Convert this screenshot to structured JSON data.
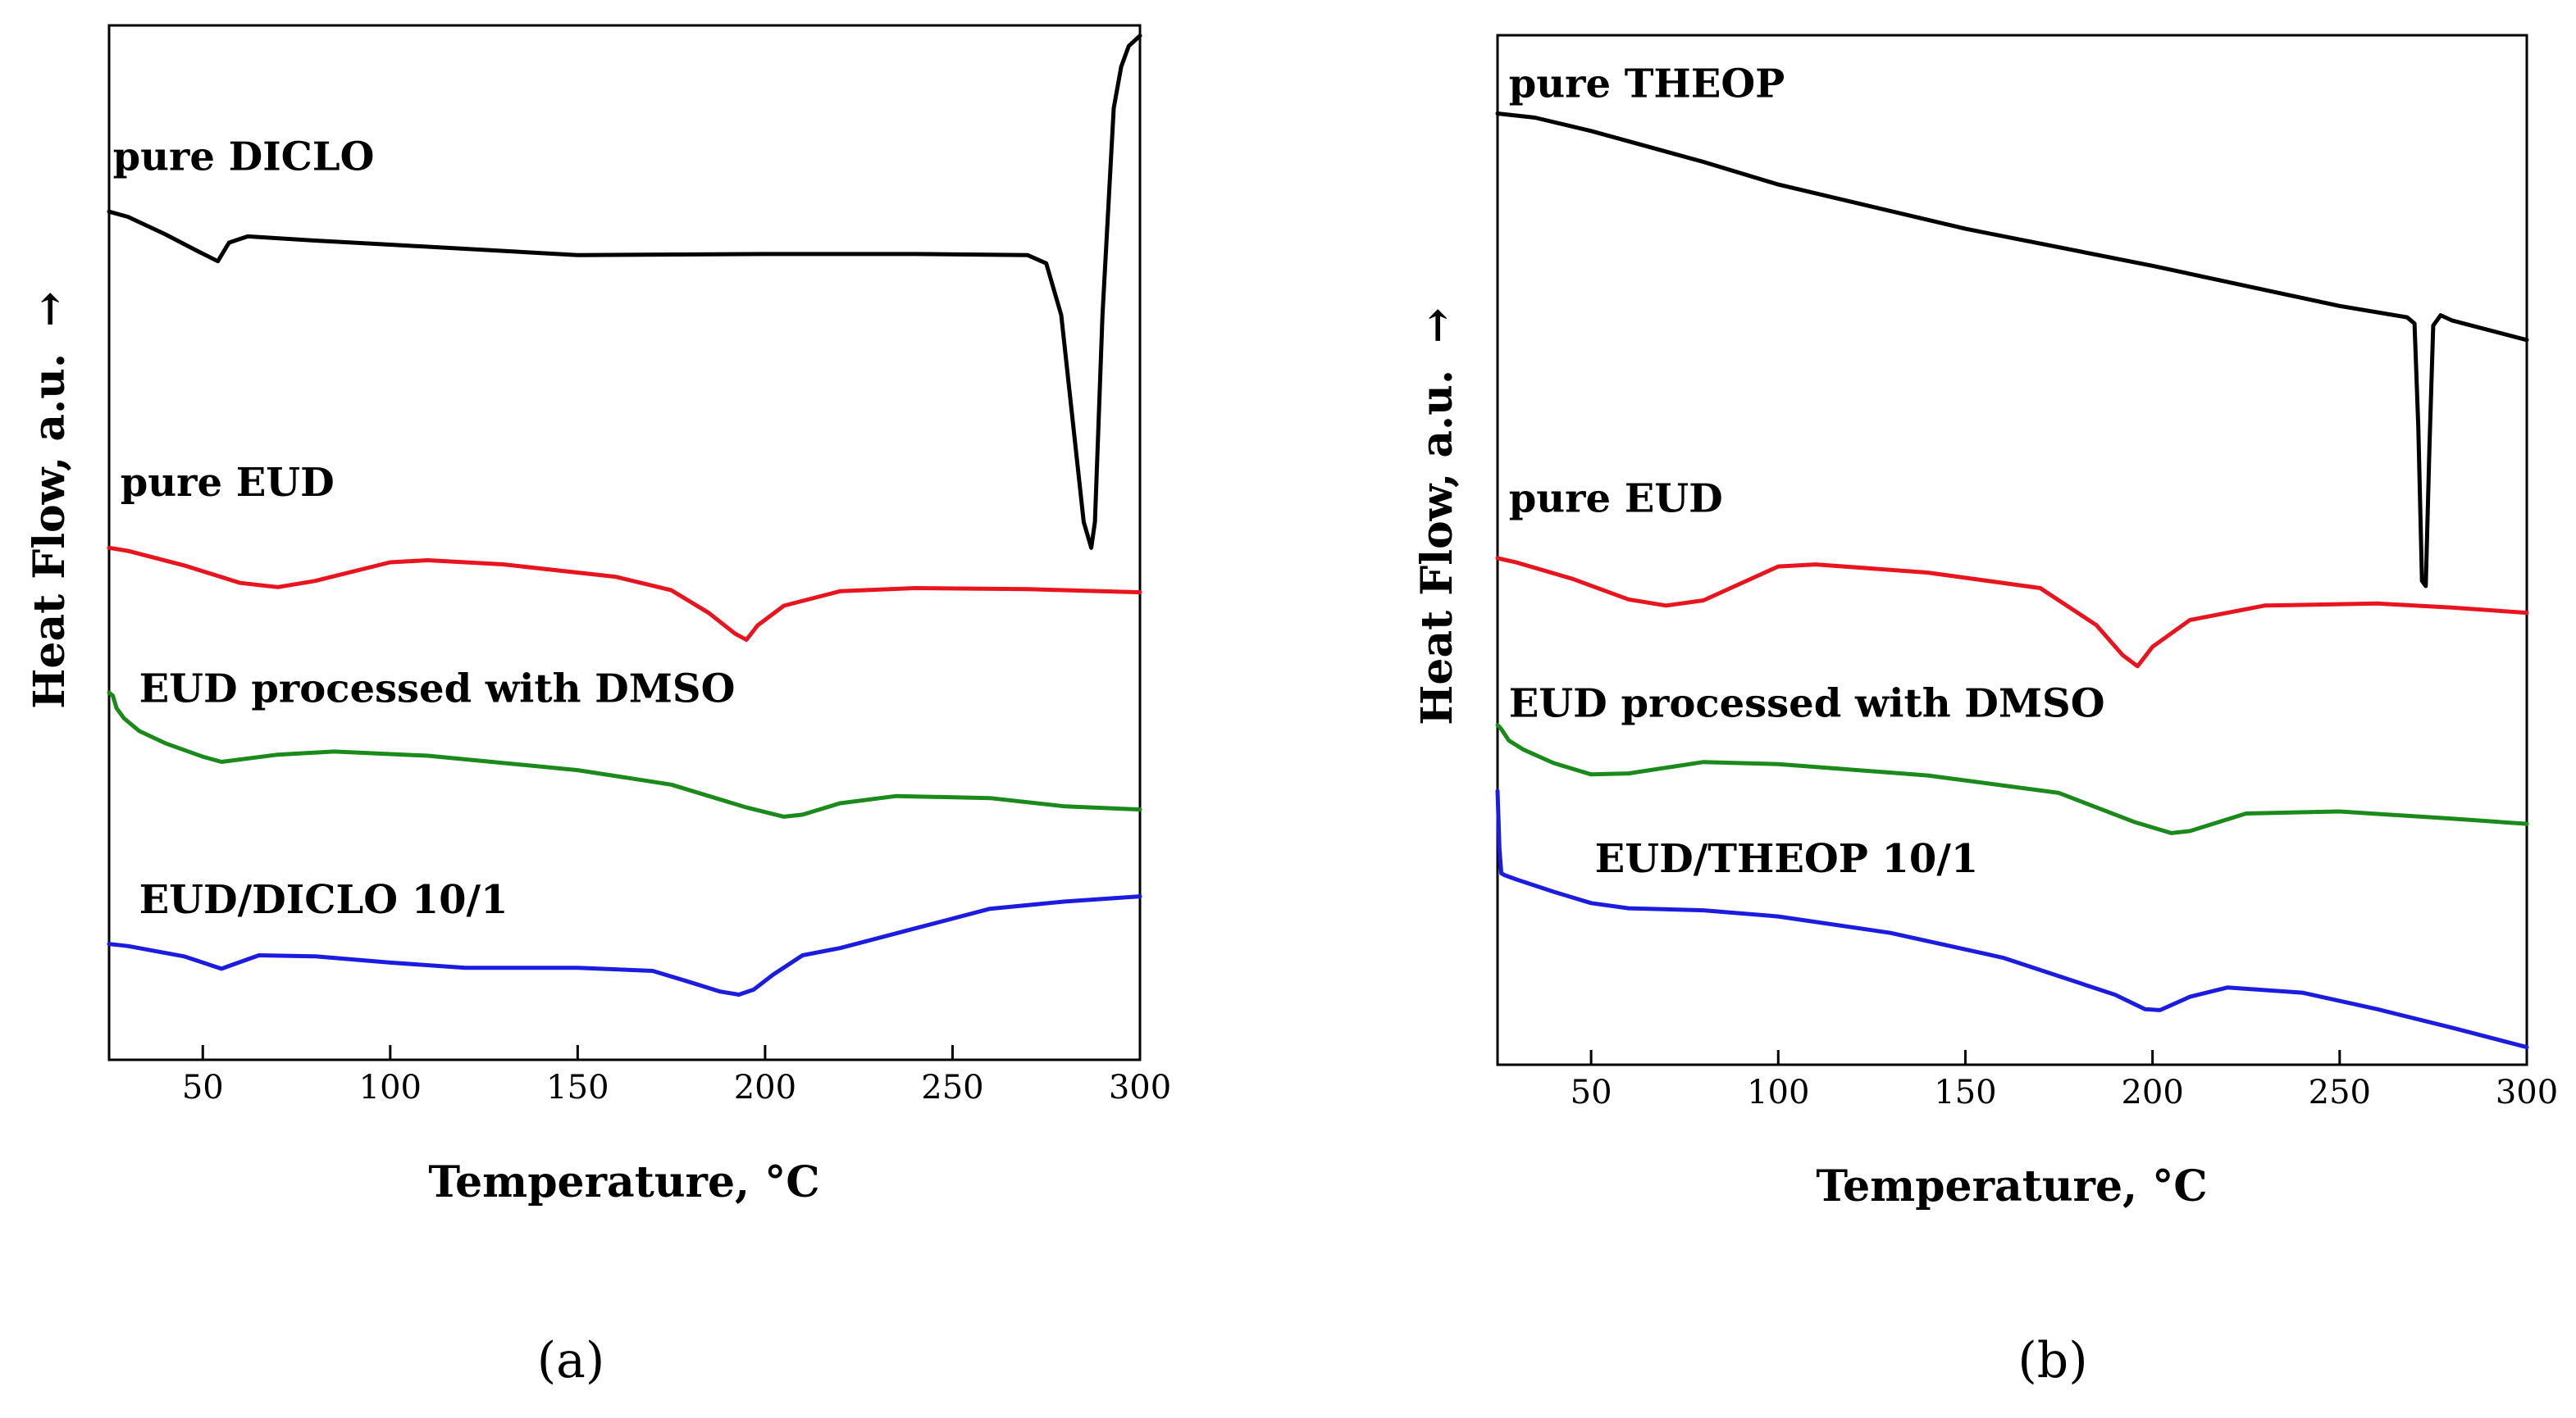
{
  "chart_data": [
    {
      "type": "line",
      "panel": "a",
      "panel_label": "(a)",
      "panel_letter": "a",
      "xlabel": "Temperature, °C",
      "ylabel": "Heat Flow, a.u.",
      "ylabel_arrow": "→",
      "xlim": [
        25,
        300
      ],
      "ylim": [
        0,
        100
      ],
      "xticks": [
        50,
        100,
        150,
        200,
        250,
        300
      ],
      "yticks_shown": false,
      "series": [
        {
          "name": "pure DICLO",
          "color": "#000000",
          "label_anchor": [
            26,
            86
          ],
          "x": [
            25,
            30,
            40,
            48,
            54,
            57,
            62,
            80,
            100,
            150,
            200,
            240,
            270,
            275,
            279,
            282,
            285,
            287,
            288,
            290,
            293,
            295,
            297,
            300
          ],
          "y": [
            82,
            81.5,
            79.8,
            78.3,
            77.2,
            79,
            79.6,
            79.2,
            78.8,
            77.8,
            77.9,
            77.9,
            77.8,
            77,
            72,
            62,
            52,
            49.5,
            52,
            72,
            92,
            96,
            98,
            99
          ]
        },
        {
          "name": "pure EUD",
          "color": "#e8141e",
          "label_anchor": [
            28,
            54.5
          ],
          "x": [
            25,
            30,
            45,
            60,
            70,
            80,
            100,
            110,
            130,
            160,
            175,
            185,
            192,
            195,
            198,
            205,
            220,
            240,
            270,
            300
          ],
          "y": [
            49.5,
            49.2,
            47.8,
            46.1,
            45.7,
            46.3,
            48.1,
            48.3,
            47.9,
            46.7,
            45.4,
            43.2,
            41.2,
            40.6,
            42,
            43.9,
            45.3,
            45.6,
            45.5,
            45.2
          ]
        },
        {
          "name": "EUD processed with DMSO",
          "color": "#1a8a1a",
          "label_anchor": [
            33,
            34.6
          ],
          "x": [
            25,
            26,
            27,
            29,
            33,
            40,
            50,
            55,
            70,
            85,
            110,
            150,
            175,
            195,
            205,
            210,
            220,
            235,
            260,
            280,
            300
          ],
          "y": [
            35.5,
            35.2,
            34,
            33,
            31.8,
            30.6,
            29.3,
            28.8,
            29.5,
            29.8,
            29.4,
            28,
            26.6,
            24.4,
            23.5,
            23.7,
            24.8,
            25.5,
            25.3,
            24.5,
            24.2
          ]
        },
        {
          "name": "EUD/DICLO 10/1",
          "color": "#1c1ce0",
          "label_anchor": [
            33,
            14.2
          ],
          "x": [
            25,
            30,
            45,
            55,
            58,
            65,
            80,
            100,
            120,
            150,
            170,
            180,
            188,
            193,
            197,
            202,
            210,
            220,
            240,
            260,
            280,
            300
          ],
          "y": [
            11.2,
            11,
            10,
            8.8,
            9.2,
            10.1,
            10,
            9.4,
            8.9,
            8.9,
            8.6,
            7.5,
            6.6,
            6.3,
            6.8,
            8.2,
            10.1,
            10.8,
            12.7,
            14.6,
            15.3,
            15.8
          ]
        }
      ]
    },
    {
      "type": "line",
      "panel": "b",
      "panel_label": "(b)",
      "panel_letter": "b",
      "xlabel": "Temperature, °C",
      "ylabel": "Heat Flow, a.u.",
      "ylabel_arrow": "→",
      "xlim": [
        25,
        300
      ],
      "ylim": [
        0,
        100
      ],
      "xticks": [
        50,
        100,
        150,
        200,
        250,
        300
      ],
      "yticks_shown": false,
      "series": [
        {
          "name": "pure THEOP",
          "color": "#000000",
          "label_anchor": [
            28,
            94
          ],
          "x": [
            25,
            35,
            50,
            80,
            100,
            150,
            200,
            250,
            268,
            270,
            271,
            272,
            273,
            274,
            275,
            277,
            280,
            300
          ],
          "y": [
            92.4,
            92,
            90.7,
            87.7,
            85.5,
            81.2,
            77.6,
            73.7,
            72.6,
            72,
            62,
            47,
            46.5,
            60,
            71.8,
            72.8,
            72.3,
            70.4
          ]
        },
        {
          "name": "pure EUD",
          "color": "#e8141e",
          "label_anchor": [
            28,
            53.7
          ],
          "x": [
            25,
            30,
            45,
            60,
            70,
            80,
            100,
            110,
            140,
            170,
            185,
            192,
            196,
            200,
            210,
            230,
            260,
            280,
            300
          ],
          "y": [
            49.2,
            48.8,
            47.2,
            45.2,
            44.6,
            45.1,
            48.4,
            48.6,
            47.8,
            46.3,
            42.7,
            39.8,
            38.7,
            40.6,
            43.2,
            44.6,
            44.8,
            44.4,
            43.9
          ]
        },
        {
          "name": "EUD processed with DMSO",
          "color": "#1a8a1a",
          "label_anchor": [
            28,
            33.8
          ],
          "x": [
            25,
            26,
            28,
            32,
            40,
            50,
            60,
            80,
            100,
            140,
            175,
            195,
            205,
            210,
            225,
            250,
            280,
            300
          ],
          "y": [
            33,
            32.6,
            31.5,
            30.6,
            29.3,
            28.2,
            28.3,
            29.4,
            29.2,
            28.1,
            26.4,
            23.6,
            22.5,
            22.7,
            24.4,
            24.6,
            23.9,
            23.4
          ]
        },
        {
          "name": "EUD/THEOP 10/1",
          "color": "#1c1ce0",
          "label_anchor": [
            51,
            18.7
          ],
          "x": [
            25,
            25.5,
            26,
            27,
            30,
            40,
            50,
            60,
            80,
            100,
            130,
            160,
            190,
            198,
            202,
            210,
            220,
            240,
            260,
            280,
            300
          ],
          "y": [
            26.6,
            21,
            18.6,
            18.4,
            18,
            16.8,
            15.7,
            15.2,
            15,
            14.4,
            12.8,
            10.4,
            6.8,
            5.4,
            5.3,
            6.6,
            7.5,
            7,
            5.4,
            3.6,
            1.7
          ]
        }
      ]
    }
  ]
}
